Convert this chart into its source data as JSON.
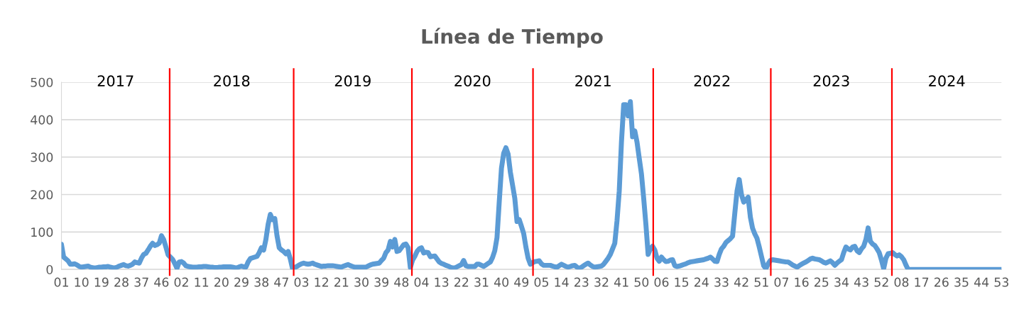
{
  "chart_data": {
    "type": "line",
    "title": "Línea de Tiempo",
    "categories": [
      "01",
      null,
      null,
      null,
      null,
      null,
      null,
      null,
      null,
      "10",
      null,
      null,
      null,
      null,
      null,
      null,
      null,
      null,
      "19",
      null,
      null,
      null,
      null,
      null,
      null,
      null,
      null,
      "28",
      null,
      null,
      null,
      null,
      null,
      null,
      null,
      null,
      "37",
      null,
      null,
      null,
      null,
      null,
      null,
      null,
      null,
      "46",
      null,
      null,
      null,
      null,
      null,
      null,
      null,
      null,
      "02",
      null,
      null,
      null,
      null,
      null,
      null,
      null,
      null,
      "11",
      null,
      null,
      null,
      null,
      null,
      null,
      null,
      null,
      "20",
      null,
      null,
      null,
      null,
      null,
      null,
      null,
      null,
      "29",
      null,
      null,
      null,
      null,
      null,
      null,
      null,
      null,
      "38",
      null,
      null,
      null,
      null,
      null,
      null,
      null,
      null,
      "47",
      null,
      null,
      null,
      null,
      null,
      null,
      null,
      null,
      "03",
      null,
      null,
      null,
      null,
      null,
      null,
      null,
      null,
      "12",
      null,
      null,
      null,
      null,
      null,
      null,
      null,
      null,
      "21",
      null,
      null,
      null,
      null,
      null,
      null,
      null,
      null,
      "30",
      null,
      null,
      null,
      null,
      null,
      null,
      null,
      null,
      "39",
      null,
      null,
      null,
      null,
      null,
      null,
      null,
      null,
      "48",
      null,
      null,
      null,
      null,
      null,
      null,
      null,
      null,
      "04",
      null,
      null,
      null,
      null,
      null,
      null,
      null,
      null,
      "13",
      null,
      null,
      null,
      null,
      null,
      null,
      null,
      null,
      "22",
      null,
      null,
      null,
      null,
      null,
      null,
      null,
      null,
      "31",
      null,
      null,
      null,
      null,
      null,
      null,
      null,
      null,
      "40",
      null,
      null,
      null,
      null,
      null,
      null,
      null,
      null,
      "49",
      null,
      null,
      null,
      null,
      null,
      null,
      null,
      null,
      "05",
      null,
      null,
      null,
      null,
      null,
      null,
      null,
      null,
      "14",
      null,
      null,
      null,
      null,
      null,
      null,
      null,
      null,
      "23",
      null,
      null,
      null,
      null,
      null,
      null,
      null,
      null,
      "32",
      null,
      null,
      null,
      null,
      null,
      null,
      null,
      null,
      "41",
      null,
      null,
      null,
      null,
      null,
      null,
      null,
      null,
      "50",
      null,
      null,
      null,
      null,
      null,
      null,
      null,
      null,
      "06",
      null,
      null,
      null,
      null,
      null,
      null,
      null,
      null,
      "15",
      null,
      null,
      null,
      null,
      null,
      null,
      null,
      null,
      "24",
      null,
      null,
      null,
      null,
      null,
      null,
      null,
      null,
      "33",
      null,
      null,
      null,
      null,
      null,
      null,
      null,
      null,
      "42",
      null,
      null,
      null,
      null,
      null,
      null,
      null,
      null,
      "51",
      null,
      null,
      null,
      null,
      null,
      null,
      null,
      null,
      "07",
      null,
      null,
      null,
      null,
      null,
      null,
      null,
      null,
      "16",
      null,
      null,
      null,
      null,
      null,
      null,
      null,
      null,
      "25",
      null,
      null,
      null,
      null,
      null,
      null,
      null,
      null,
      "34",
      null,
      null,
      null,
      null,
      null,
      null,
      null,
      null,
      "43",
      null,
      null,
      null,
      null,
      null,
      null,
      null,
      null,
      "52",
      null,
      null,
      null,
      null,
      null,
      null,
      null,
      null,
      "08",
      null,
      null,
      null,
      null,
      null,
      null,
      null,
      null,
      "17",
      null,
      null,
      null,
      null,
      null,
      null,
      null,
      null,
      "26",
      null,
      null,
      null,
      null,
      null,
      null,
      null,
      null,
      "35",
      null,
      null,
      null,
      null,
      null,
      null,
      null,
      null,
      "44",
      null,
      null,
      null,
      null,
      null,
      null,
      null,
      null,
      "53"
    ],
    "series": [
      {
        "color": "#5b9bd5",
        "values": [
          67,
          33,
          28,
          23,
          14,
          14,
          15,
          12,
          8,
          6,
          7,
          8,
          9,
          6,
          5,
          4,
          5,
          6,
          6,
          7,
          7,
          8,
          6,
          5,
          4,
          6,
          9,
          11,
          13,
          10,
          9,
          11,
          14,
          20,
          18,
          17,
          30,
          40,
          43,
          52,
          62,
          70,
          64,
          66,
          70,
          90,
          80,
          60,
          39,
          33,
          27,
          16,
          3,
          20,
          21,
          17,
          10,
          8,
          7,
          6,
          6,
          6,
          7,
          7,
          8,
          8,
          7,
          6,
          6,
          5,
          5,
          6,
          6,
          7,
          7,
          7,
          7,
          6,
          5,
          4,
          7,
          9,
          7,
          6,
          20,
          29,
          31,
          33,
          35,
          45,
          58,
          52,
          80,
          120,
          147,
          133,
          136,
          90,
          58,
          52,
          48,
          42,
          48,
          28,
          2,
          5,
          8,
          12,
          15,
          17,
          15,
          14,
          15,
          17,
          14,
          12,
          10,
          8,
          9,
          9,
          10,
          10,
          10,
          9,
          8,
          7,
          6,
          9,
          11,
          13,
          10,
          8,
          6,
          6,
          6,
          6,
          6,
          6,
          9,
          12,
          14,
          15,
          16,
          17,
          24,
          30,
          45,
          52,
          75,
          60,
          80,
          48,
          50,
          58,
          66,
          68,
          58,
          5,
          25,
          35,
          48,
          55,
          58,
          44,
          46,
          45,
          34,
          35,
          36,
          28,
          20,
          16,
          14,
          11,
          9,
          6,
          4,
          4,
          7,
          10,
          13,
          24,
          10,
          8,
          8,
          8,
          8,
          14,
          14,
          11,
          8,
          12,
          16,
          20,
          32,
          50,
          85,
          180,
          270,
          310,
          325,
          308,
          260,
          225,
          190,
          128,
          133,
          115,
          96,
          60,
          30,
          14,
          18,
          21,
          22,
          23,
          15,
          11,
          11,
          11,
          11,
          9,
          7,
          6,
          10,
          14,
          11,
          8,
          6,
          8,
          10,
          11,
          6,
          3,
          6,
          10,
          14,
          17,
          12,
          8,
          6,
          7,
          8,
          9,
          14,
          22,
          30,
          40,
          55,
          70,
          130,
          209,
          340,
          440,
          440,
          410,
          448,
          354,
          370,
          340,
          297,
          255,
          190,
          120,
          40,
          55,
          62,
          52,
          30,
          22,
          33,
          26,
          21,
          22,
          25,
          26,
          10,
          8,
          9,
          11,
          13,
          15,
          18,
          20,
          21,
          22,
          23,
          24,
          25,
          26,
          28,
          30,
          33,
          28,
          22,
          21,
          40,
          55,
          62,
          72,
          77,
          82,
          89,
          150,
          209,
          240,
          200,
          180,
          185,
          193,
          140,
          110,
          95,
          83,
          60,
          35,
          10,
          2,
          15,
          24,
          26,
          25,
          24,
          23,
          22,
          21,
          20,
          20,
          16,
          12,
          9,
          6,
          10,
          14,
          17,
          20,
          24,
          28,
          30,
          28,
          27,
          26,
          23,
          19,
          17,
          20,
          23,
          18,
          11,
          17,
          22,
          26,
          45,
          60,
          55,
          52,
          60,
          62,
          50,
          45,
          55,
          62,
          80,
          111,
          75,
          68,
          64,
          55,
          45,
          25,
          2,
          30,
          42,
          43,
          45,
          40,
          36,
          39,
          34,
          26,
          12,
          0,
          0,
          0,
          0,
          0,
          0,
          0,
          0,
          0,
          0,
          0,
          0,
          0,
          0,
          0,
          0,
          0,
          0,
          0,
          0,
          0,
          0,
          0,
          0,
          0,
          0,
          0,
          0,
          0,
          0,
          0,
          0,
          0,
          0,
          0,
          0,
          0,
          0,
          0,
          0,
          0,
          0,
          0
        ]
      }
    ],
    "ylim": [
      0,
      500
    ],
    "yticks": [
      0,
      100,
      200,
      300,
      400,
      500
    ],
    "grid": "y",
    "annotations": [
      "2017",
      "2018",
      "2019",
      "2020",
      "2021",
      "2022",
      "2023",
      "2024"
    ]
  }
}
